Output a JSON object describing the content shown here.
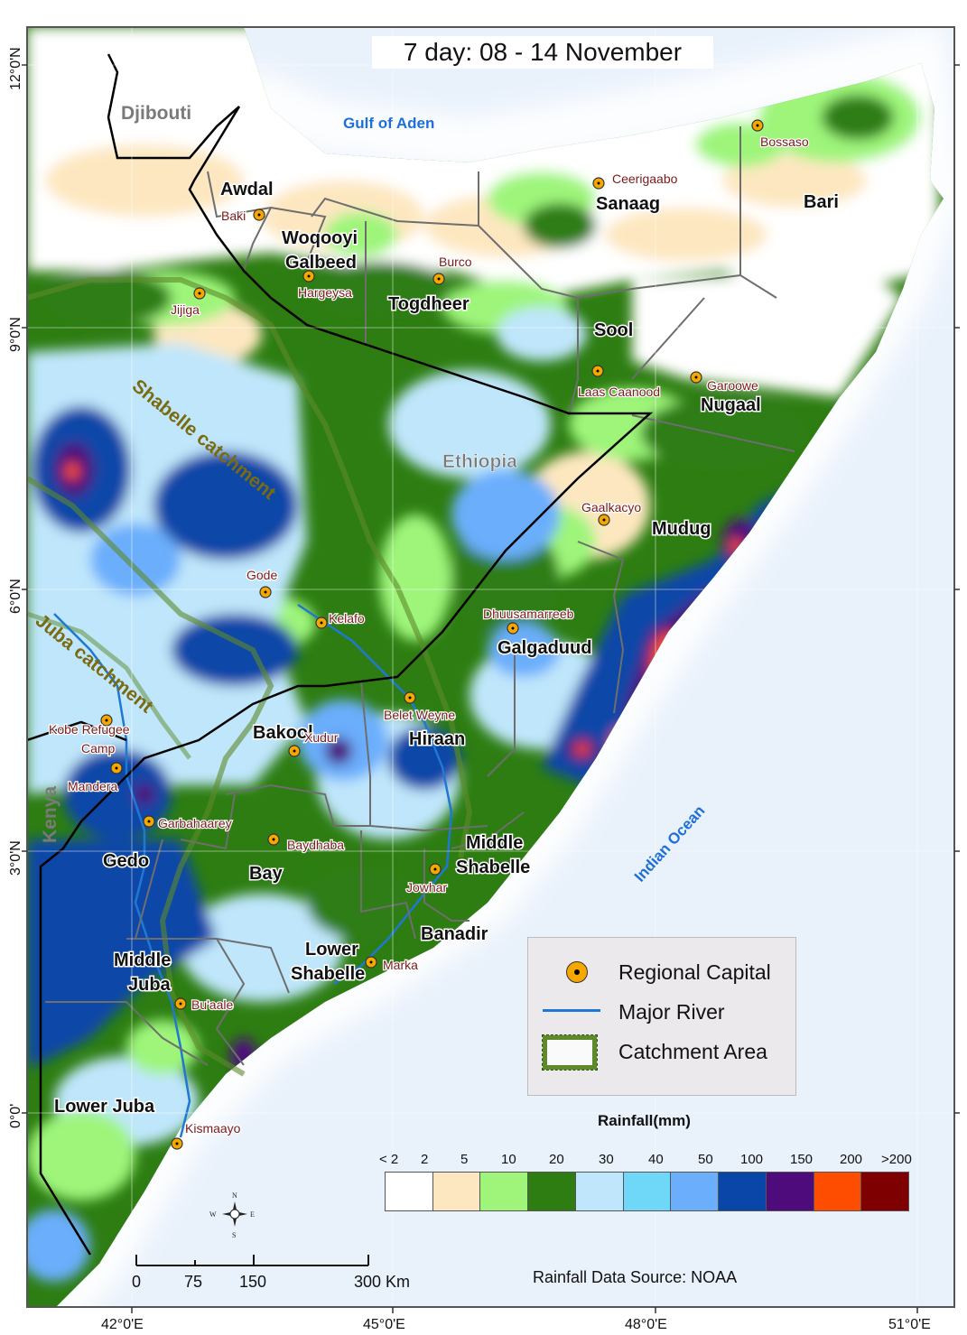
{
  "title": "7 day:  08 - 14 November",
  "regions": {
    "awdal": "Awdal",
    "woqooyi_1": "Woqooyi",
    "woqooyi_2": "Galbeed",
    "togdheer": "Togdheer",
    "sanaag": "Sanaag",
    "bari": "Bari",
    "sool": "Sool",
    "nugaal": "Nugaal",
    "mudug": "Mudug",
    "galgaduud": "Galgaduud",
    "hiraan": "Hiraan",
    "bakool": "Bakool",
    "gedo": "Gedo",
    "bay": "Bay",
    "middle_shabelle_1": "Middle",
    "middle_shabelle_2": "Shabelle",
    "banadir": "Banadir",
    "lower_shabelle_1": "Lower",
    "lower_shabelle_2": "Shabelle",
    "middle_juba_1": "Middle",
    "middle_juba_2": "Juba",
    "lower_juba": "Lower Juba"
  },
  "cities": {
    "bossaso": "Bossaso",
    "ceerigaabo": "Ceerigaabo",
    "baki": "Baki",
    "burco": "Burco",
    "hargeysa": "Hargeysa",
    "jijiga": "Jijiga",
    "laas_caanood": "Laas Caanood",
    "garoowe": "Garoowe",
    "gaalkacyo": "Gaalkacyo",
    "gode": "Gode",
    "kelafo": "Kelafo",
    "dhuusamarreeb": "Dhuusamarreeb",
    "belet_weyne": "Belet Weyne",
    "kobe_1": "Kobe Refugee",
    "kobe_2": "Camp",
    "mandera": "Mandera",
    "xudur": "Xudur",
    "garbahaarey": "Garbahaarey",
    "baydhaba": "Baydhaba",
    "jowhar": "Jowhar",
    "marka": "Marka",
    "buaale": "Bu'aale",
    "kismaayo": "Kismaayo"
  },
  "countries": {
    "djibouti": "Djibouti",
    "ethiopia": "Ethiopia",
    "kenya": "Kenya"
  },
  "water": {
    "gulf": "Gulf of Aden",
    "ocean": "Indian Ocean"
  },
  "catchments": {
    "shabelle": "Shabelle catchment",
    "juba": "Juba catchment"
  },
  "lat_ticks": [
    "12°0'N",
    "9°0'N",
    "6°0'N",
    "3°0'N",
    "0°0'"
  ],
  "lon_ticks": [
    "42°0'E",
    "45°0'E",
    "48°0'E",
    "51°0'E"
  ],
  "legend": {
    "capital": "Regional Capital",
    "river": "Major River",
    "catchment": "Catchment Area"
  },
  "rainfall": {
    "title": "Rainfall(mm)",
    "classes": [
      {
        "label": "< 2",
        "color": "#ffffff"
      },
      {
        "label": "2",
        "color": "#fde7c0"
      },
      {
        "label": "5",
        "color": "#9ef57a"
      },
      {
        "label": "10",
        "color": "#2d7d12"
      },
      {
        "label": "20",
        "color": "#bfe6fb"
      },
      {
        "label": "30",
        "color": "#6fd8f8"
      },
      {
        "label": "40",
        "color": "#6aaefc"
      },
      {
        "label": "50",
        "color": "#0a46a8"
      },
      {
        "label": "100",
        "color": "#4e0b7c"
      },
      {
        "label": "150",
        "color": "#ff4d00"
      },
      {
        "label": "200",
        "color": "#7e0000"
      },
      {
        "label": ">200",
        "color": ""
      }
    ]
  },
  "scale_bar": {
    "labels": [
      "0",
      "75",
      "150",
      "300 Km"
    ]
  },
  "compass": {
    "n": "N",
    "s": "S",
    "e": "E",
    "w": "W"
  },
  "source": "Rainfall Data Source: NOAA"
}
